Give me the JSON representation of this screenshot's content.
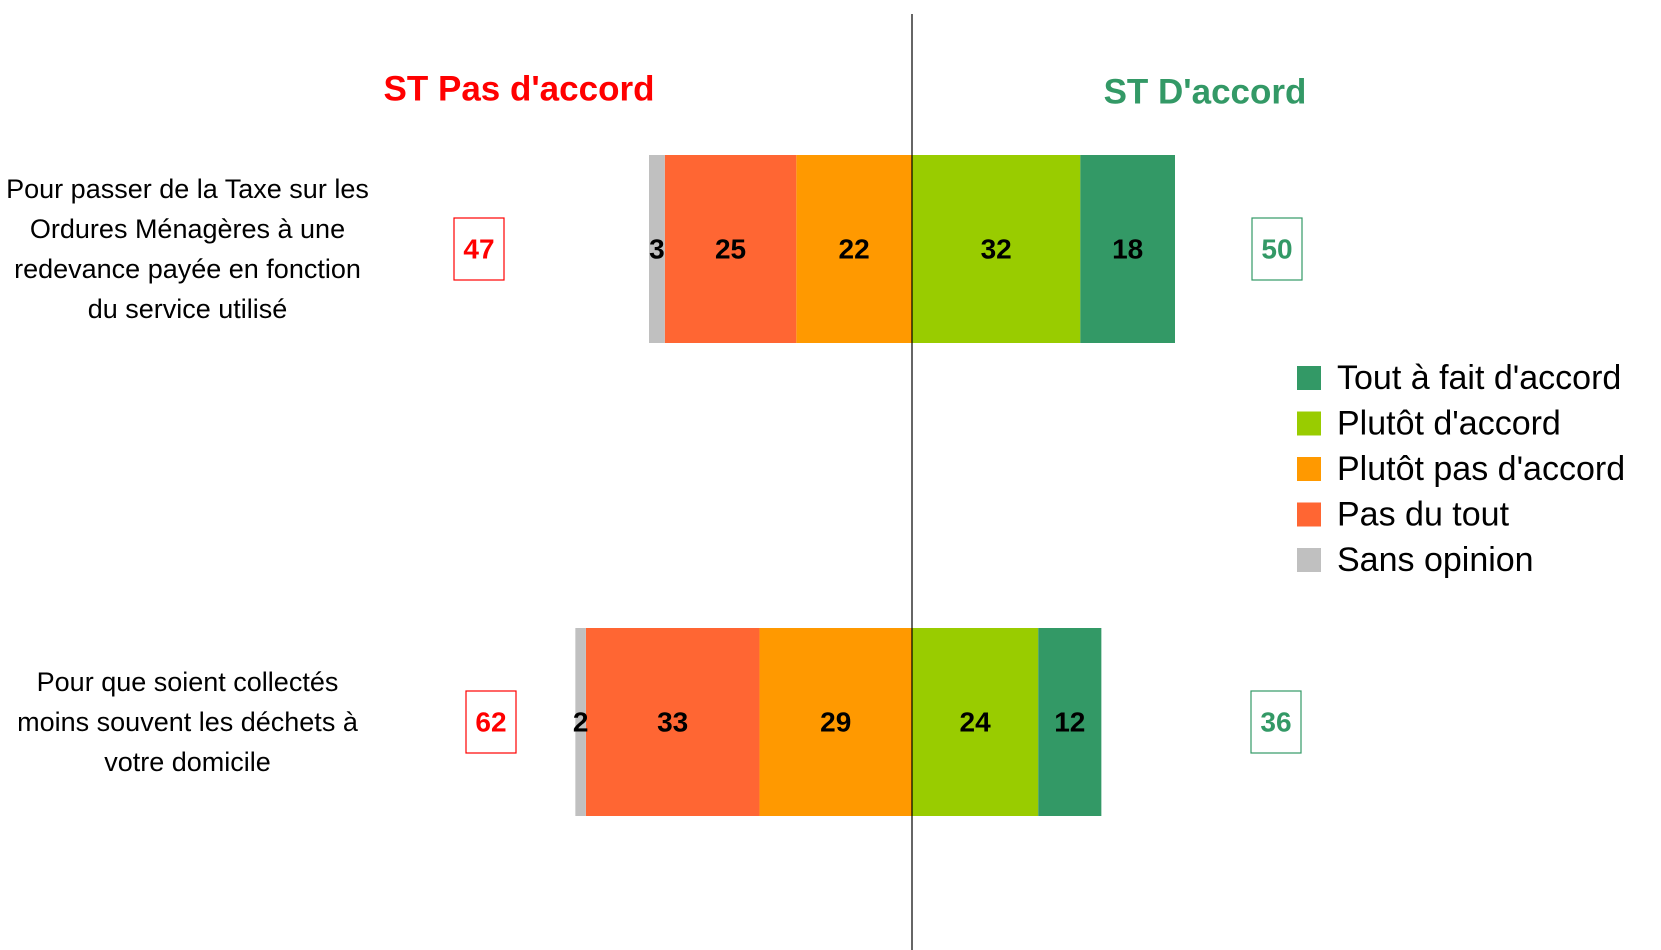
{
  "chart_data": {
    "type": "diverging_bar",
    "left_header": "ST Pas d'accord",
    "right_header": "ST D'accord",
    "categories": [
      "Pour passer de la Taxe sur les Ordures Ménagères à une redevance payée en fonction du service utilisé",
      "Pour que soient collectés moins souvent les déchets à votre domicile"
    ],
    "series": [
      {
        "name": "Sans opinion",
        "color": "#c0c0c0",
        "direction": "left",
        "values": [
          3,
          2
        ]
      },
      {
        "name": "Pas du tout",
        "color": "#ff6633",
        "direction": "left",
        "values": [
          25,
          33
        ]
      },
      {
        "name": "Plutôt pas d'accord",
        "color": "#ff9900",
        "direction": "left",
        "values": [
          22,
          29
        ]
      },
      {
        "name": "Plutôt d'accord",
        "color": "#99cc00",
        "direction": "right",
        "values": [
          32,
          24
        ]
      },
      {
        "name": "Tout à fait d'accord",
        "color": "#339966",
        "direction": "right",
        "values": [
          18,
          12
        ]
      }
    ],
    "left_totals": {
      "color": "#ff0000",
      "values": [
        47,
        62
      ]
    },
    "right_totals": {
      "color": "#339966",
      "values": [
        50,
        36
      ]
    }
  }
}
